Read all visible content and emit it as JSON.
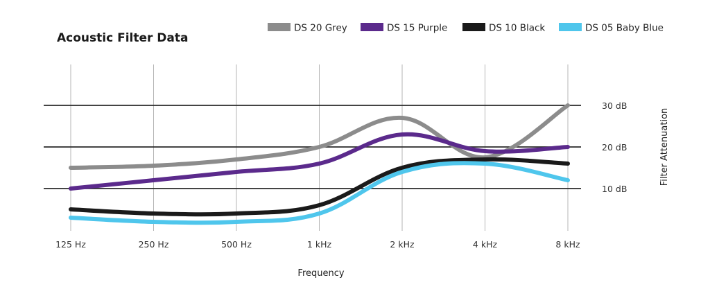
{
  "chart_data": {
    "type": "line",
    "title": "Acoustic Filter Data",
    "xlabel": "Frequency",
    "ylabel": "Filter Attenuation",
    "categories": [
      "125 Hz",
      "250 Hz",
      "500 Hz",
      "1 kHz",
      "2 kHz",
      "4 kHz",
      "8 kHz"
    ],
    "y_ticks": [
      {
        "value": 10,
        "label": "10 dB"
      },
      {
        "value": 20,
        "label": "20 dB"
      },
      {
        "value": 30,
        "label": "30 dB"
      }
    ],
    "ylim": [
      0,
      40
    ],
    "grid": true,
    "legend_position": "top",
    "series": [
      {
        "name": "DS 20 Grey",
        "color": "#8c8c8c",
        "values": [
          15,
          15.5,
          17,
          20,
          27,
          17.5,
          30
        ]
      },
      {
        "name": "DS 15 Purple",
        "color": "#5b2a8c",
        "values": [
          10,
          12,
          14,
          16,
          23,
          19,
          20
        ]
      },
      {
        "name": "DS 10 Black",
        "color": "#1a1a1a",
        "values": [
          5,
          4,
          4,
          6,
          15,
          17,
          16
        ]
      },
      {
        "name": "DS 05 Baby Blue",
        "color": "#4fc6ec",
        "values": [
          3,
          2,
          2,
          4,
          14,
          16,
          12
        ]
      }
    ]
  }
}
